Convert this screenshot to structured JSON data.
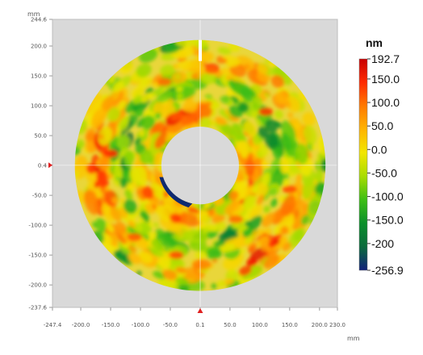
{
  "chart_data": {
    "type": "heatmap",
    "description_free": true,
    "x_unit": "mm",
    "y_unit": "mm",
    "xlim": [
      -247.4,
      230.0
    ],
    "ylim": [
      -237.6,
      244.6
    ],
    "x_ticks": [
      {
        "value": -247.4,
        "label": "-247.4"
      },
      {
        "value": -200,
        "label": "-200.0"
      },
      {
        "value": -150,
        "label": "-150.0"
      },
      {
        "value": -100,
        "label": "-100.0"
      },
      {
        "value": -50,
        "label": "-50.0"
      },
      {
        "value": 0.1,
        "label": "0.1"
      },
      {
        "value": 50,
        "label": "50.0"
      },
      {
        "value": 100,
        "label": "100.0"
      },
      {
        "value": 150,
        "label": "150.0"
      },
      {
        "value": 200,
        "label": "200.0"
      },
      {
        "value": 230,
        "label": "230.0"
      }
    ],
    "y_ticks": [
      {
        "value": 244.6,
        "label": "244.6"
      },
      {
        "value": 200,
        "label": "200.0"
      },
      {
        "value": 150,
        "label": "150.0"
      },
      {
        "value": 100,
        "label": "100.0"
      },
      {
        "value": 50,
        "label": "50.0"
      },
      {
        "value": 0.4,
        "label": "0.4"
      },
      {
        "value": -50,
        "label": "-50.0"
      },
      {
        "value": -100,
        "label": "-100.0"
      },
      {
        "value": -150,
        "label": "-150.0"
      },
      {
        "value": -200,
        "label": "-200.0"
      },
      {
        "value": -237.6,
        "label": "-237.6"
      }
    ],
    "cursor": {
      "x": 0.1,
      "y": 0.4
    },
    "ring": {
      "center_x": 0,
      "center_y": 0,
      "outer_radius": 210,
      "inner_radius": 65
    },
    "colorbar": {
      "unit": "nm",
      "min": -256.9,
      "max": 192.7,
      "labels": [
        {
          "value": 192.7,
          "label": "192.7"
        },
        {
          "value": 150,
          "label": "150.0"
        },
        {
          "value": 100,
          "label": "100.0"
        },
        {
          "value": 50,
          "label": "50.0"
        },
        {
          "value": 0,
          "label": "0.0"
        },
        {
          "value": -50,
          "label": "-50.0"
        },
        {
          "value": -100,
          "label": "-100.0"
        },
        {
          "value": -150,
          "label": "-150.0"
        },
        {
          "value": -200,
          "label": "-200"
        },
        {
          "value": -256.9,
          "label": "-256.9"
        }
      ],
      "colors": [
        "#c80000",
        "#ff2a00",
        "#ff7a00",
        "#ffb400",
        "#f2e600",
        "#a8dc00",
        "#3cbe14",
        "#0a8f2a",
        "#0a6a3c",
        "#10207a"
      ]
    },
    "grid": false,
    "background_color": "#d9d9d9"
  }
}
